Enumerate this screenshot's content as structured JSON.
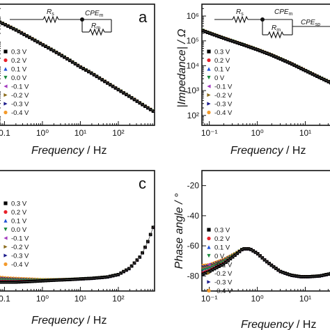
{
  "series_styles": [
    {
      "label": "0.3 V",
      "color": "#000000",
      "marker": "square"
    },
    {
      "label": "0.2 V",
      "color": "#e8202a",
      "marker": "circle"
    },
    {
      "label": "0.1 V",
      "color": "#1f4fd6",
      "marker": "triangle-up"
    },
    {
      "label": "0.0 V",
      "color": "#1a8a3c",
      "marker": "triangle-down"
    },
    {
      "label": "-0.1 V",
      "color": "#a33bbf",
      "marker": "triangle-left"
    },
    {
      "label": "-0.2 V",
      "color": "#8a6a1a",
      "marker": "triangle-right"
    },
    {
      "label": "-0.3 V",
      "color": "#1a1a8a",
      "marker": "triangle-right"
    },
    {
      "label": "-0.4 V",
      "color": "#f39a2b",
      "marker": "circle"
    }
  ],
  "circuits": {
    "a": {
      "rs": "R",
      "rs_sub": "s",
      "cpe": "CPE",
      "cpe_sub": "m",
      "rm": "R",
      "rm_sub": "m"
    },
    "b": {
      "rs": "R",
      "rs_sub": "s",
      "cpe": "CPE",
      "cpe_sub": "m",
      "rm": "R",
      "rm_sub": "m",
      "cpe2": "CPE",
      "cpe2_sub": "sp"
    }
  },
  "chart_data": [
    {
      "panel": "a",
      "type": "line",
      "letter": "a",
      "xlabel": "Frequency",
      "xunit": " / Hz",
      "ylabel": "",
      "xscale": "log",
      "yscale": "log",
      "xlim": [
        0.07,
        900
      ],
      "ylim": [
        40,
        3000000
      ],
      "xticks": [
        0.1,
        1,
        10,
        100
      ],
      "xtick_labels": [
        "0.1",
        "10⁰",
        "10¹",
        "10²"
      ],
      "yticks": [],
      "ytick_labels": [],
      "legend_labels": [
        "0.3 V",
        "0.2 V",
        "0.1 V",
        "0.0 V",
        "-0.1 V",
        "-0.2 V",
        "-0.3 V",
        "-0.4 V"
      ],
      "legend": "left",
      "x": [
        0.07,
        0.1,
        0.2,
        0.5,
        1,
        2,
        5,
        10,
        20,
        50,
        100,
        200,
        500,
        900
      ],
      "curve": [
        600000,
        470000,
        280000,
        130000,
        72000,
        40000,
        17500,
        9000,
        5000,
        2100,
        1100,
        580,
        240,
        140
      ]
    },
    {
      "panel": "b",
      "type": "line",
      "letter": "",
      "xlabel": "Frequency",
      "xunit": " / Hz",
      "ylabel": "|Impedance| / Ω",
      "xscale": "log",
      "yscale": "log",
      "xlim": [
        0.07,
        40
      ],
      "ylim": [
        40,
        3000000
      ],
      "xticks": [
        0.1,
        1,
        10
      ],
      "xtick_labels": [
        "10⁻¹",
        "10⁰",
        "10¹"
      ],
      "yticks": [
        100,
        1000,
        10000,
        100000,
        1000000
      ],
      "ytick_labels": [
        "10²",
        "10³",
        "10⁴",
        "10⁵",
        "10⁶"
      ],
      "legend_labels": [
        "0.3 V",
        "0.2 V",
        "0.1 V",
        "0 V",
        "-0.1 V",
        "-0.2 V",
        "-0.3 V",
        "-0.4 V"
      ],
      "legend": "left",
      "x": [
        0.07,
        0.1,
        0.2,
        0.5,
        1,
        2,
        5,
        10,
        20,
        40
      ],
      "curve": [
        270000,
        210000,
        130000,
        72000,
        45000,
        27000,
        12500,
        6500,
        3400,
        1800
      ]
    },
    {
      "panel": "c",
      "type": "line",
      "letter": "c",
      "xlabel": "Frequency",
      "xunit": " / Hz",
      "ylabel": "",
      "xscale": "log",
      "yscale": "linear",
      "xlim": [
        0.07,
        900
      ],
      "ylim": [
        -95,
        0
      ],
      "xticks": [
        0.1,
        1,
        10,
        100
      ],
      "xtick_labels": [
        "0.1",
        "10⁰",
        "10¹",
        "10²"
      ],
      "yticks": [],
      "ytick_labels": [],
      "legend_labels": [
        "0.3 V",
        "0.2 V",
        "0.1 V",
        "0.0 V",
        "-0.1 V",
        "-0.2 V",
        "-0.3 V",
        "-0.4 V"
      ],
      "legend": "left",
      "x": [
        0.07,
        0.1,
        0.2,
        0.5,
        1,
        2,
        5,
        10,
        20,
        50,
        100,
        200,
        400,
        600,
        900
      ],
      "curve": [
        -88,
        -88,
        -88,
        -87.5,
        -87,
        -86.5,
        -86,
        -85.5,
        -85,
        -84,
        -82,
        -77,
        -67,
        -56,
        -42
      ],
      "curve_low": [
        -84,
        -84.5,
        -85,
        -85.5,
        -86,
        -86,
        -85.8,
        -85.4,
        -85,
        -84,
        -82,
        -77,
        -67,
        -56,
        -42
      ]
    },
    {
      "panel": "d",
      "type": "line",
      "letter": "",
      "xlabel": "Frequency",
      "xunit": " / Hz",
      "ylabel": "Phase angle / °",
      "xscale": "log",
      "yscale": "linear",
      "xlim": [
        0.07,
        40
      ],
      "ylim": [
        -90,
        -10
      ],
      "xticks": [
        0.1,
        1,
        10
      ],
      "xtick_labels": [
        "10⁻¹",
        "10⁰",
        "10¹"
      ],
      "yticks": [
        -80,
        -60,
        -40,
        -20
      ],
      "ytick_labels": [
        "-80",
        "-60",
        "-40",
        "-20"
      ],
      "legend_labels": [
        "0.3 V",
        "0.2 V",
        "0.1 V",
        "0 V",
        "-0.1 V",
        "-0.2 V",
        "-0.3 V",
        "-0.4 V"
      ],
      "legend": "left",
      "x": [
        0.07,
        0.1,
        0.2,
        0.35,
        0.5,
        0.7,
        1,
        1.5,
        2,
        3,
        5,
        8,
        12,
        20,
        40
      ],
      "curve_top": [
        -79,
        -77,
        -72,
        -66,
        -62,
        -62,
        -65,
        -70,
        -73,
        -77,
        -79.5,
        -80.5,
        -80.5,
        -80,
        -78
      ],
      "curve_low": [
        -73,
        -72.5,
        -69,
        -65,
        -62,
        -62,
        -65,
        -70,
        -73,
        -77,
        -79.5,
        -80.5,
        -80.5,
        -80,
        -78
      ]
    }
  ]
}
